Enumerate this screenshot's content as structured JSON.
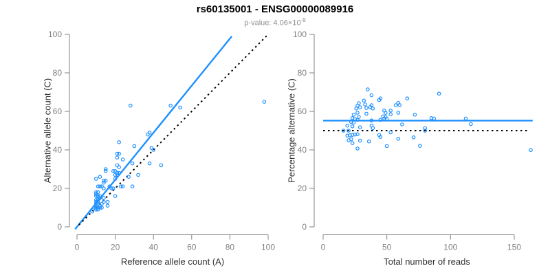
{
  "title": "rs60135001 - ENSG00000089916",
  "subtitle": {
    "text": "p-value: 4.06×10",
    "exponent": "-9"
  },
  "colors": {
    "accent": "#1E90FF",
    "identity": "#000000",
    "axis_line": "#808080",
    "tick_label": "#7f7f7f",
    "axis_title": "#303030",
    "subtitle": "#8e8e8e"
  },
  "chart_data": [
    {
      "type": "scatter",
      "xlabel": "Reference allele count (A)",
      "ylabel": "Alternative allele count (C)",
      "xlim": [
        0,
        100
      ],
      "ylim": [
        0,
        100
      ],
      "xticks": [
        0,
        20,
        40,
        60,
        80,
        100
      ],
      "yticks": [
        0,
        20,
        40,
        60,
        80,
        100
      ],
      "grid": false,
      "points": [
        [
          8,
          8
        ],
        [
          10,
          9
        ],
        [
          9,
          10
        ],
        [
          10,
          10
        ],
        [
          11,
          9
        ],
        [
          11,
          10
        ],
        [
          12,
          10
        ],
        [
          10,
          12
        ],
        [
          11,
          12
        ],
        [
          12,
          11
        ],
        [
          10,
          13
        ],
        [
          11,
          13
        ],
        [
          13,
          10
        ],
        [
          10,
          14
        ],
        [
          11,
          14
        ],
        [
          13,
          12
        ],
        [
          12,
          15
        ],
        [
          16,
          11
        ],
        [
          10,
          16
        ],
        [
          11,
          16
        ],
        [
          12,
          16
        ],
        [
          10,
          17
        ],
        [
          10,
          18
        ],
        [
          11,
          18
        ],
        [
          14,
          15
        ],
        [
          16,
          13
        ],
        [
          14,
          13
        ],
        [
          12,
          21
        ],
        [
          13,
          21
        ],
        [
          11,
          21
        ],
        [
          14,
          20
        ],
        [
          10,
          25
        ],
        [
          12,
          26
        ],
        [
          14,
          23
        ],
        [
          14,
          24
        ],
        [
          15,
          24
        ],
        [
          15,
          29
        ],
        [
          15,
          30
        ],
        [
          17,
          21
        ],
        [
          19,
          20
        ],
        [
          18,
          20
        ],
        [
          20,
          16
        ],
        [
          20,
          25
        ],
        [
          20,
          27
        ],
        [
          21,
          27
        ],
        [
          19,
          29
        ],
        [
          20,
          29
        ],
        [
          21,
          28
        ],
        [
          22,
          28
        ],
        [
          21,
          32
        ],
        [
          22,
          31
        ],
        [
          21,
          36
        ],
        [
          21,
          38
        ],
        [
          22,
          38
        ],
        [
          24,
          35
        ],
        [
          23,
          21
        ],
        [
          24,
          21
        ],
        [
          29,
          21
        ],
        [
          27,
          26
        ],
        [
          29,
          33
        ],
        [
          32,
          27
        ],
        [
          30,
          42
        ],
        [
          22,
          44
        ],
        [
          37,
          48
        ],
        [
          38,
          49
        ],
        [
          39,
          41
        ],
        [
          40,
          40
        ],
        [
          38,
          33
        ],
        [
          44,
          32
        ],
        [
          28,
          63
        ],
        [
          49,
          63
        ],
        [
          54,
          62
        ],
        [
          98,
          65
        ]
      ],
      "lines": [
        {
          "name": "fit-line",
          "x": [
            -1,
            81
          ],
          "y": [
            -1.2,
            99
          ],
          "color": "#1E90FF",
          "dashed": false
        },
        {
          "name": "identity-line",
          "x": [
            1,
            100
          ],
          "y": [
            1,
            100
          ],
          "color": "#000000",
          "dashed": true
        }
      ]
    },
    {
      "type": "scatter",
      "xlabel": "Total number of reads",
      "ylabel": "Percentage alternative (C)",
      "xlim": [
        0,
        165
      ],
      "ylim": [
        0,
        100
      ],
      "xticks": [
        0,
        50,
        100,
        150
      ],
      "yticks": [
        0,
        20,
        40,
        60,
        80,
        100
      ],
      "grid": false,
      "points": [
        [
          16,
          50
        ],
        [
          19,
          47.4
        ],
        [
          19,
          52.6
        ],
        [
          20,
          50
        ],
        [
          20,
          45
        ],
        [
          21,
          47.6
        ],
        [
          22,
          45.5
        ],
        [
          22,
          54.5
        ],
        [
          23,
          52.2
        ],
        [
          23,
          47.8
        ],
        [
          23,
          56.5
        ],
        [
          24,
          54.2
        ],
        [
          23,
          43.5
        ],
        [
          24,
          58.3
        ],
        [
          25,
          56
        ],
        [
          25,
          48
        ],
        [
          27,
          55.6
        ],
        [
          27,
          40.7
        ],
        [
          26,
          61.5
        ],
        [
          27,
          59.3
        ],
        [
          28,
          57.1
        ],
        [
          27,
          63
        ],
        [
          28,
          64.3
        ],
        [
          29,
          62.1
        ],
        [
          29,
          51.7
        ],
        [
          29,
          44.8
        ],
        [
          27,
          48.1
        ],
        [
          33,
          63.6
        ],
        [
          34,
          61.8
        ],
        [
          32,
          65.6
        ],
        [
          34,
          58.8
        ],
        [
          35,
          71.4
        ],
        [
          38,
          68.4
        ],
        [
          37,
          62.2
        ],
        [
          38,
          63.2
        ],
        [
          39,
          61.5
        ],
        [
          44,
          65.9
        ],
        [
          45,
          66.7
        ],
        [
          38,
          55.3
        ],
        [
          39,
          51.3
        ],
        [
          38,
          52.6
        ],
        [
          36,
          44.4
        ],
        [
          45,
          55.6
        ],
        [
          47,
          57.4
        ],
        [
          48,
          56.3
        ],
        [
          48,
          60.4
        ],
        [
          49,
          59.2
        ],
        [
          49,
          57.1
        ],
        [
          50,
          56
        ],
        [
          53,
          60.4
        ],
        [
          53,
          58.5
        ],
        [
          57,
          63.2
        ],
        [
          59,
          64.4
        ],
        [
          60,
          63.3
        ],
        [
          59,
          59.3
        ],
        [
          44,
          47.7
        ],
        [
          45,
          46.7
        ],
        [
          50,
          42
        ],
        [
          53,
          49.1
        ],
        [
          62,
          53.2
        ],
        [
          59,
          45.8
        ],
        [
          72,
          58.3
        ],
        [
          66,
          66.7
        ],
        [
          85,
          56.5
        ],
        [
          87,
          56.3
        ],
        [
          80,
          51.3
        ],
        [
          80,
          50
        ],
        [
          71,
          46.5
        ],
        [
          76,
          42.1
        ],
        [
          91,
          69.2
        ],
        [
          112,
          56.3
        ],
        [
          116,
          53.4
        ],
        [
          163,
          39.9
        ]
      ],
      "lines": [
        {
          "name": "fit-line",
          "x": [
            0,
            164.5
          ],
          "y": [
            55.2,
            55.2
          ],
          "color": "#1E90FF",
          "dashed": false
        },
        {
          "name": "null-line",
          "x": [
            0,
            161
          ],
          "y": [
            50,
            50
          ],
          "color": "#000000",
          "dashed": true
        }
      ]
    }
  ]
}
